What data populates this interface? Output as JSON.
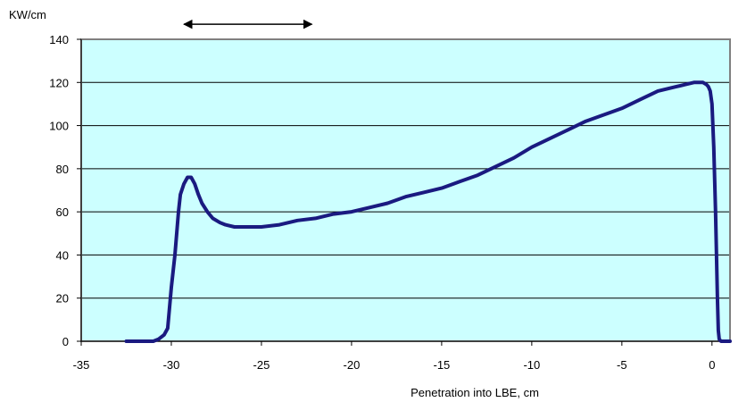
{
  "chart_data": {
    "type": "line",
    "title": "",
    "ylabel": "KW/cm",
    "xlabel": "Penetration into LBE, cm",
    "xlim": [
      -35,
      1
    ],
    "ylim": [
      0,
      140
    ],
    "x_ticks": [
      -35,
      -30,
      -25,
      -20,
      -15,
      -10,
      -5,
      0
    ],
    "y_ticks": [
      0,
      20,
      40,
      60,
      80,
      100,
      120,
      140
    ],
    "grid": "horizontal",
    "colors": {
      "plot_bg": "#ccffff",
      "line": "#1a1a80",
      "grid": "#000000",
      "frame": "#808080"
    },
    "series": [
      {
        "x": [
          -32.5,
          -31,
          -30.7,
          -30.4,
          -30.2,
          -30.0,
          -29.8,
          -29.6,
          -29.5,
          -29.3,
          -29.1,
          -28.9,
          -28.7,
          -28.5,
          -28.3,
          -28.0,
          -27.7,
          -27.3,
          -27.0,
          -26.5,
          -26.0,
          -25.0,
          -24.0,
          -23.0,
          -22.0,
          -21.0,
          -20.0,
          -19.0,
          -18.0,
          -17.0,
          -16.0,
          -15.0,
          -14.0,
          -13.0,
          -12.0,
          -11.0,
          -10.0,
          -9.0,
          -8.0,
          -7.0,
          -6.0,
          -5.0,
          -4.0,
          -3.0,
          -2.0,
          -1.5,
          -1.0,
          -0.5,
          -0.3,
          -0.2,
          -0.1,
          0.0,
          0.1,
          0.2,
          0.3,
          0.35,
          0.4,
          0.5,
          0.8,
          1.0
        ],
        "y": [
          0,
          0,
          1,
          3,
          6,
          25,
          40,
          60,
          68,
          73,
          76,
          76,
          73,
          68,
          64,
          60,
          57,
          55,
          54,
          53,
          53,
          53,
          54,
          56,
          57,
          59,
          60,
          62,
          64,
          67,
          69,
          71,
          74,
          77,
          81,
          85,
          90,
          94,
          98,
          102,
          105,
          108,
          112,
          116,
          118,
          119,
          120,
          120,
          119,
          118,
          116,
          110,
          90,
          60,
          20,
          5,
          1,
          0,
          0,
          0
        ]
      }
    ],
    "annotation": {
      "type": "double-arrow",
      "from_x": -29.3,
      "to_x": -22.2,
      "y": 147
    }
  }
}
